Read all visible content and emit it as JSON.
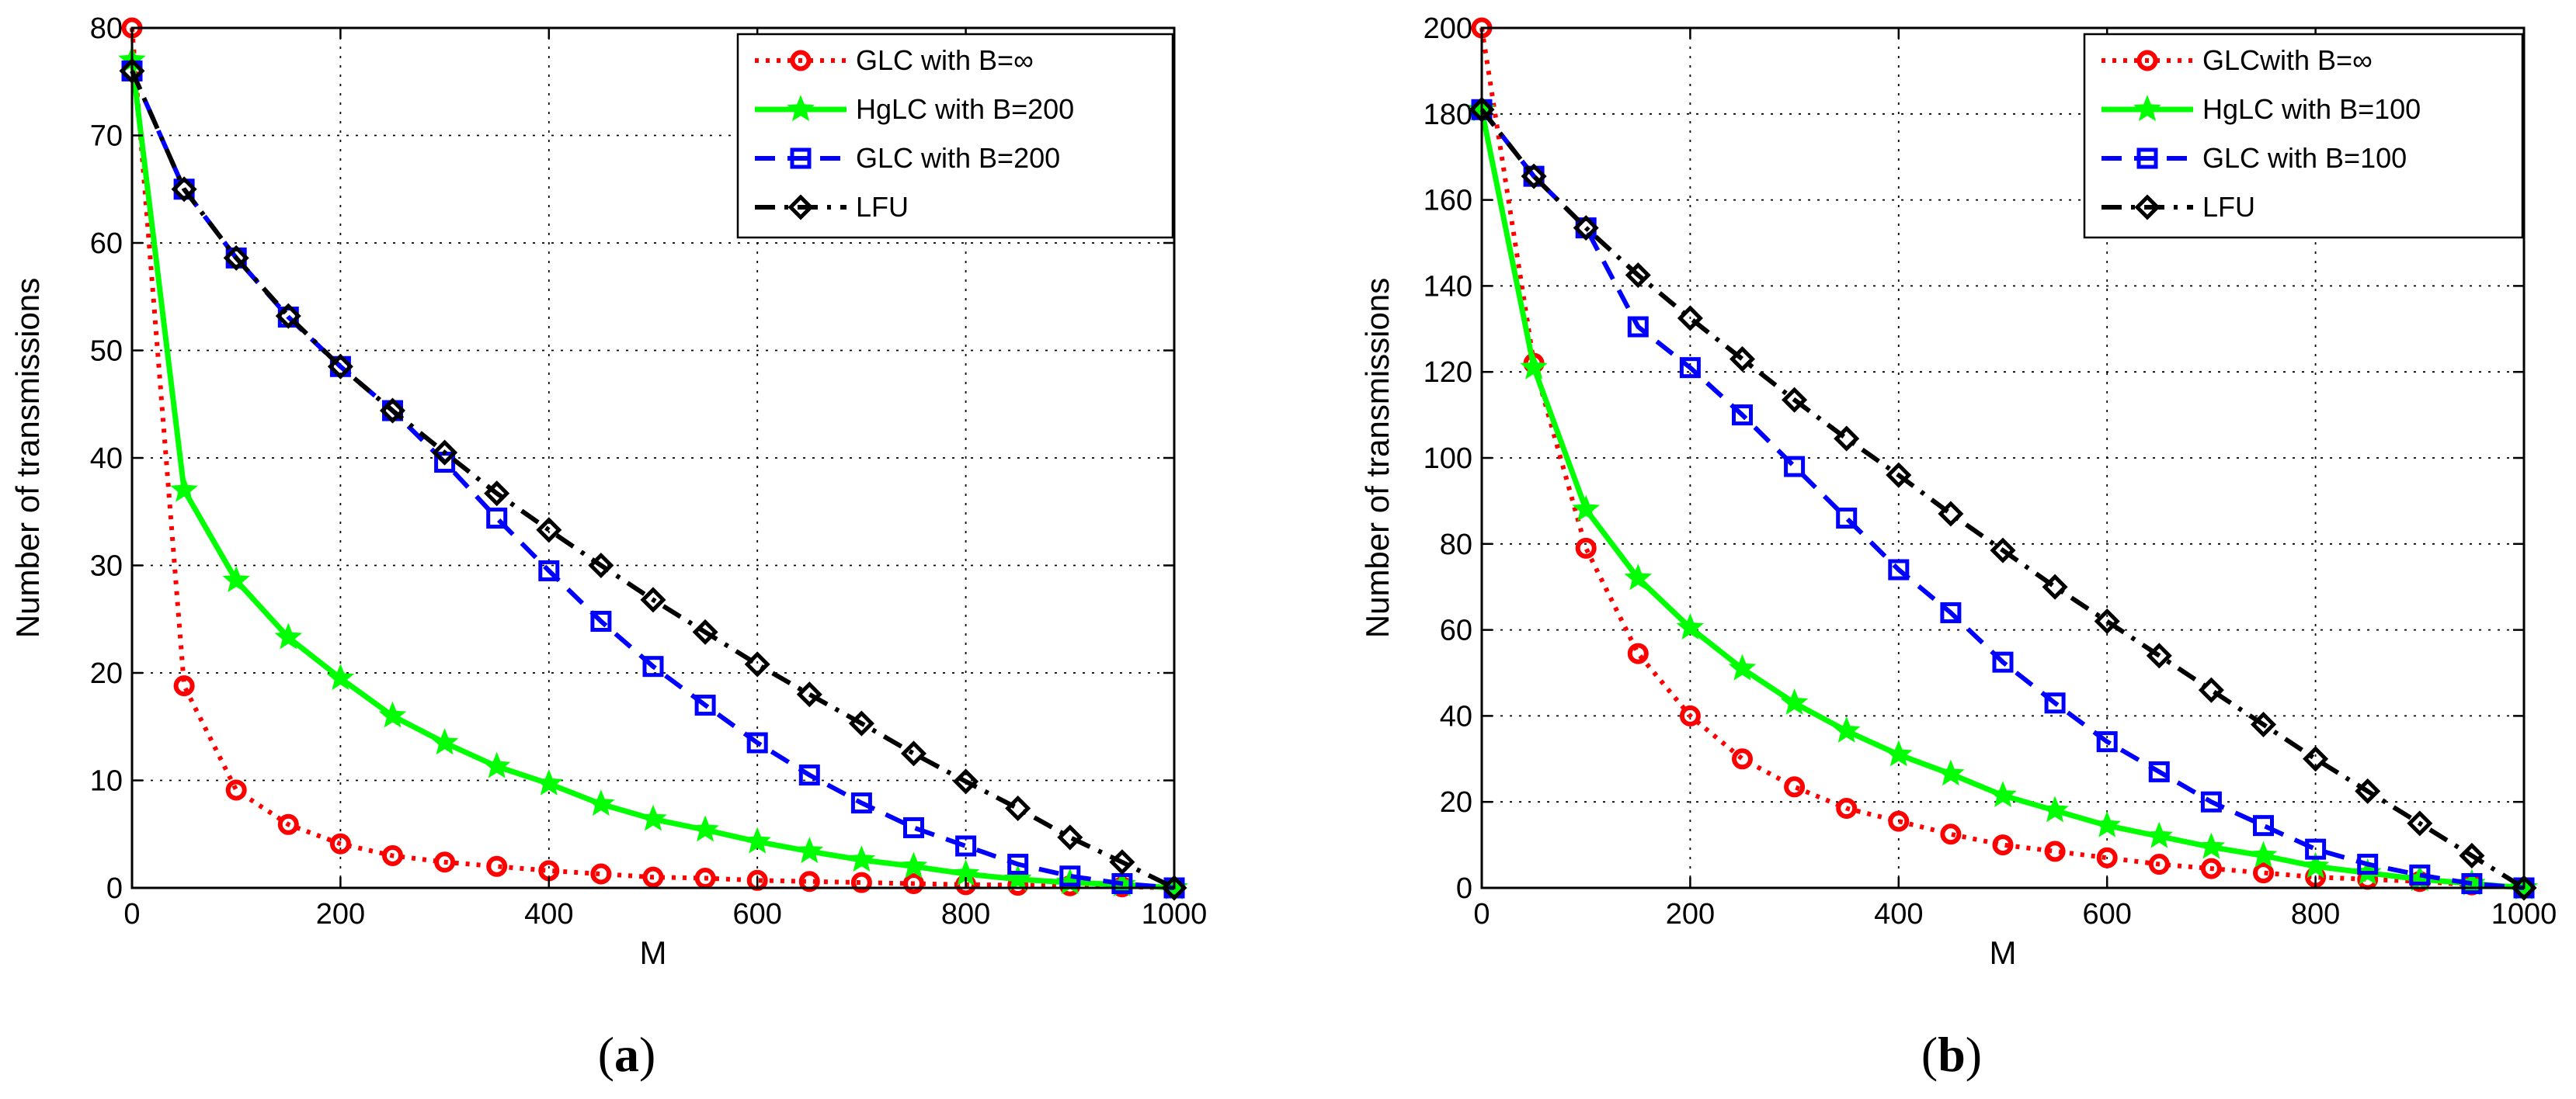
{
  "chart_data": [
    {
      "type": "line",
      "panel_label": "(a)",
      "panel_letter": "a",
      "xlabel": "M",
      "ylabel": "Number of transmissions",
      "xlim": [
        0,
        1000
      ],
      "ylim": [
        0,
        80
      ],
      "xticks": [
        0,
        200,
        400,
        600,
        800,
        1000
      ],
      "yticks": [
        0,
        10,
        20,
        30,
        40,
        50,
        60,
        70,
        80
      ],
      "grid": true,
      "legend_position": "top-right",
      "x": [
        0,
        50,
        100,
        150,
        200,
        250,
        300,
        350,
        400,
        450,
        500,
        550,
        600,
        650,
        700,
        750,
        800,
        850,
        900,
        950,
        1000
      ],
      "series": [
        {
          "name": "GLC with B=∞",
          "color": "#ff0000",
          "dash": "dotted",
          "marker": "circle",
          "values": [
            80,
            18.8,
            9.1,
            5.9,
            4.1,
            3.0,
            2.4,
            2.0,
            1.6,
            1.3,
            1.0,
            0.9,
            0.7,
            0.6,
            0.5,
            0.4,
            0.3,
            0.25,
            0.2,
            0.1,
            0
          ]
        },
        {
          "name": "HgLC with B=200",
          "color": "#00ff00",
          "dash": "solid",
          "marker": "star",
          "values": [
            77,
            37,
            28.6,
            23.3,
            19.5,
            16.0,
            13.5,
            11.3,
            9.7,
            7.8,
            6.4,
            5.4,
            4.3,
            3.4,
            2.6,
            2.0,
            1.3,
            0.8,
            0.5,
            0.3,
            0
          ]
        },
        {
          "name": "GLC with B=200",
          "color": "#0000ff",
          "dash": "dashed",
          "marker": "square",
          "values": [
            76,
            65,
            58.6,
            53.1,
            48.5,
            44.4,
            39.6,
            34.4,
            29.5,
            24.8,
            20.6,
            17.0,
            13.5,
            10.5,
            7.9,
            5.6,
            3.9,
            2.2,
            1.1,
            0.4,
            0
          ]
        },
        {
          "name": "LFU",
          "color": "#000000",
          "dash": "dashdot",
          "marker": "diamond",
          "values": [
            76,
            65,
            58.6,
            53.2,
            48.5,
            44.4,
            40.5,
            36.7,
            33.3,
            30.0,
            26.8,
            23.8,
            20.8,
            18.0,
            15.3,
            12.5,
            9.9,
            7.4,
            4.7,
            2.4,
            0
          ]
        }
      ]
    },
    {
      "type": "line",
      "panel_label": "(b)",
      "panel_letter": "b",
      "xlabel": "M",
      "ylabel": "Number of transmissions",
      "xlim": [
        0,
        1000
      ],
      "ylim": [
        0,
        200
      ],
      "xticks": [
        0,
        200,
        400,
        600,
        800,
        1000
      ],
      "yticks": [
        0,
        20,
        40,
        60,
        80,
        100,
        120,
        140,
        160,
        180,
        200
      ],
      "grid": true,
      "legend_position": "top-right",
      "x": [
        0,
        50,
        100,
        150,
        200,
        250,
        300,
        350,
        400,
        450,
        500,
        550,
        600,
        650,
        700,
        750,
        800,
        850,
        900,
        950,
        1000
      ],
      "series": [
        {
          "name": "GLCwith B=∞",
          "color": "#ff0000",
          "dash": "dotted",
          "marker": "circle",
          "values": [
            200,
            122,
            79,
            54.5,
            40,
            30,
            23.5,
            18.5,
            15.5,
            12.5,
            10,
            8.5,
            7,
            5.5,
            4.5,
            3.5,
            2.5,
            2,
            1.5,
            0.7,
            0
          ]
        },
        {
          "name": "HgLC with B=100",
          "color": "#00ff00",
          "dash": "solid",
          "marker": "star",
          "values": [
            181,
            121,
            88,
            72,
            60.5,
            51,
            43,
            36.5,
            31,
            26.5,
            21.5,
            18,
            14.5,
            12,
            9.5,
            7.5,
            5,
            3.5,
            2,
            1,
            0
          ]
        },
        {
          "name": "GLC with B=100",
          "color": "#0000ff",
          "dash": "dashed",
          "marker": "square",
          "values": [
            181,
            165.5,
            153.5,
            130.5,
            121,
            110,
            98,
            86,
            74,
            64,
            52.5,
            43,
            34,
            27,
            20,
            14.5,
            9,
            5.5,
            3,
            1,
            0
          ]
        },
        {
          "name": "LFU",
          "color": "#000000",
          "dash": "dashdot",
          "marker": "diamond",
          "values": [
            181,
            165.5,
            153.5,
            142.5,
            132.5,
            123,
            113.5,
            104.5,
            96,
            87,
            78.5,
            70,
            62,
            54,
            46,
            38,
            30,
            22.5,
            15,
            7.5,
            0
          ]
        }
      ]
    }
  ]
}
